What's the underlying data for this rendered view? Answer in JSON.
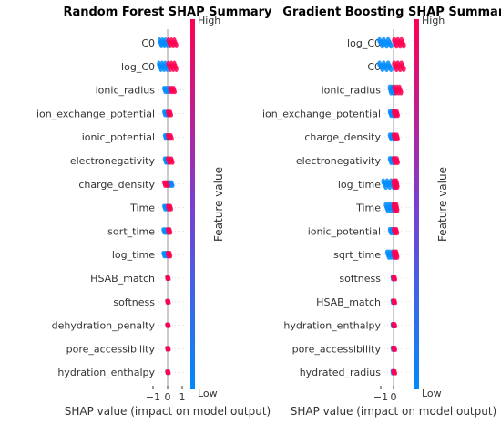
{
  "colors": {
    "high": "#ff0052",
    "low": "#008bfb",
    "zero_line": "#999999",
    "grid": "#cccccc",
    "text": "#333333"
  },
  "colorbar": {
    "high_label": "High",
    "low_label": "Low",
    "axis_label": "Feature value"
  },
  "chart_data": [
    {
      "type": "beeswarm",
      "title": "Random Forest SHAP Summary",
      "xlabel": "SHAP value (impact on model output)",
      "xticks": [
        -1,
        0,
        1
      ],
      "xlim": [
        -1.6,
        1.6
      ],
      "features": [
        {
          "name": "C0",
          "low_range": [
            -0.55,
            -0.02
          ],
          "high_range": [
            0.05,
            0.6
          ]
        },
        {
          "name": "log_C0",
          "low_range": [
            -0.6,
            -0.02
          ],
          "high_range": [
            0.05,
            0.6
          ]
        },
        {
          "name": "ionic_radius",
          "low_range": [
            -0.25,
            0.1
          ],
          "high_range": [
            0.15,
            0.5
          ]
        },
        {
          "name": "ion_exchange_potential",
          "low_range": [
            -0.25,
            0.05
          ],
          "high_range": [
            0.0,
            0.25
          ]
        },
        {
          "name": "ionic_potential",
          "low_range": [
            -0.2,
            0.05
          ],
          "high_range": [
            0.0,
            0.3
          ]
        },
        {
          "name": "electronegativity",
          "low_range": [
            -0.2,
            0.1
          ],
          "high_range": [
            0.0,
            0.35
          ]
        },
        {
          "name": "charge_density",
          "low_range": [
            0.05,
            0.35
          ],
          "high_range": [
            -0.25,
            0.05
          ]
        },
        {
          "name": "Time",
          "low_range": [
            -0.25,
            0.05
          ],
          "high_range": [
            0.0,
            0.25
          ]
        },
        {
          "name": "sqrt_time",
          "low_range": [
            -0.3,
            0.0
          ],
          "high_range": [
            0.0,
            0.2
          ]
        },
        {
          "name": "log_time",
          "low_range": [
            -0.3,
            0.0
          ],
          "high_range": [
            0.0,
            0.2
          ]
        },
        {
          "name": "HSAB_match",
          "low_range": [
            -0.05,
            0.05
          ],
          "high_range": [
            -0.05,
            0.1
          ]
        },
        {
          "name": "softness",
          "low_range": [
            -0.05,
            0.05
          ],
          "high_range": [
            -0.05,
            0.1
          ]
        },
        {
          "name": "dehydration_penalty",
          "low_range": [
            -0.05,
            0.05
          ],
          "high_range": [
            -0.05,
            0.1
          ]
        },
        {
          "name": "pore_accessibility",
          "low_range": [
            -0.05,
            0.05
          ],
          "high_range": [
            -0.05,
            0.1
          ]
        },
        {
          "name": "hydration_enthalpy",
          "low_range": [
            -0.05,
            0.05
          ],
          "high_range": [
            -0.05,
            0.1
          ]
        }
      ]
    },
    {
      "type": "beeswarm",
      "title": "Gradient Boosting SHAP Summary",
      "xlabel": "SHAP value (impact on model output)",
      "xticks": [
        -1,
        0
      ],
      "xlim": [
        -1.6,
        1.6
      ],
      "features": [
        {
          "name": "log_C0",
          "low_range": [
            -1.1,
            -0.2
          ],
          "high_range": [
            0.05,
            0.8
          ]
        },
        {
          "name": "C0",
          "low_range": [
            -1.1,
            -0.2
          ],
          "high_range": [
            0.05,
            0.8
          ]
        },
        {
          "name": "ionic_radius",
          "low_range": [
            -0.3,
            0.1
          ],
          "high_range": [
            0.05,
            0.6
          ]
        },
        {
          "name": "ion_exchange_potential",
          "low_range": [
            -0.3,
            0.1
          ],
          "high_range": [
            0.0,
            0.35
          ]
        },
        {
          "name": "charge_density",
          "low_range": [
            -0.3,
            0.1
          ],
          "high_range": [
            0.0,
            0.35
          ]
        },
        {
          "name": "electronegativity",
          "low_range": [
            -0.3,
            0.1
          ],
          "high_range": [
            0.0,
            0.35
          ]
        },
        {
          "name": "log_time",
          "low_range": [
            -0.8,
            0.0
          ],
          "high_range": [
            0.0,
            0.3
          ]
        },
        {
          "name": "Time",
          "low_range": [
            -0.6,
            0.0
          ],
          "high_range": [
            0.0,
            0.3
          ]
        },
        {
          "name": "ionic_potential",
          "low_range": [
            -0.3,
            0.05
          ],
          "high_range": [
            0.0,
            0.3
          ]
        },
        {
          "name": "sqrt_time",
          "low_range": [
            -0.5,
            0.0
          ],
          "high_range": [
            0.0,
            0.3
          ]
        },
        {
          "name": "softness",
          "low_range": [
            -0.1,
            0.05
          ],
          "high_range": [
            -0.05,
            0.15
          ]
        },
        {
          "name": "HSAB_match",
          "low_range": [
            -0.1,
            0.05
          ],
          "high_range": [
            -0.05,
            0.15
          ]
        },
        {
          "name": "hydration_enthalpy",
          "low_range": [
            -0.1,
            0.05
          ],
          "high_range": [
            -0.05,
            0.15
          ]
        },
        {
          "name": "pore_accessibility",
          "low_range": [
            -0.1,
            0.05
          ],
          "high_range": [
            -0.05,
            0.15
          ]
        },
        {
          "name": "hydrated_radius",
          "low_range": [
            -0.1,
            0.05
          ],
          "high_range": [
            -0.05,
            0.15
          ]
        }
      ]
    }
  ]
}
